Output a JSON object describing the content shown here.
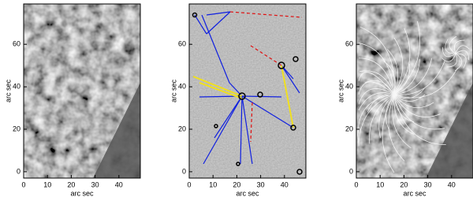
{
  "chart_data": [
    {
      "type": "image",
      "xlabel": "arc sec",
      "ylabel": "arc sec",
      "xlim": [
        0,
        49
      ],
      "ylim": [
        -3,
        79
      ],
      "xticks": [
        0,
        10,
        20,
        30,
        40
      ],
      "yticks": [
        0,
        20,
        40,
        60
      ]
    },
    {
      "type": "image",
      "xlabel": "arc sec",
      "ylabel": "arc sec",
      "xlim": [
        0,
        49
      ],
      "ylim": [
        -3,
        79
      ],
      "xticks": [
        0,
        10,
        20,
        30,
        40
      ],
      "yticks": [
        0,
        20,
        40,
        60
      ]
    },
    {
      "type": "image",
      "xlabel": "arc sec",
      "ylabel": "arc sec",
      "xlim": [
        0,
        49
      ],
      "ylim": [
        -3,
        79
      ],
      "xticks": [
        0,
        10,
        20,
        30,
        40
      ],
      "yticks": [
        0,
        20,
        40,
        60
      ]
    }
  ]
}
